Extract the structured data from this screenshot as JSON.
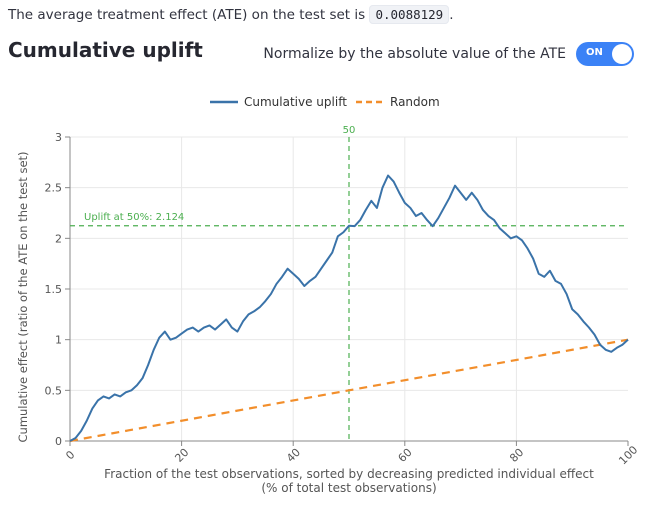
{
  "ate": {
    "prefix": "The average treatment effect (ATE) on the test set is",
    "value": "0.0088129",
    "suffix": "."
  },
  "section": {
    "title": "Cumulative uplift"
  },
  "toggle": {
    "label": "Normalize by the absolute value of the ATE",
    "state": "ON"
  },
  "colors": {
    "uplift": "#3a73a9",
    "random": "#f28e2b",
    "marker": "#4caf50",
    "toggle": "#3b82f6"
  },
  "chart_data": {
    "type": "line",
    "xlabel": "Fraction of the test observations, sorted by decreasing predicted individual effect",
    "xlabel2": "(% of total test observations)",
    "ylabel": "Cumulative effect (ratio of the ATE on the test set)",
    "xlim": [
      0,
      100
    ],
    "ylim": [
      0,
      3
    ],
    "x_ticks": [
      0,
      20,
      40,
      60,
      80,
      100
    ],
    "y_ticks": [
      0,
      0.5,
      1,
      1.5,
      2,
      2.5,
      3
    ],
    "y_tick_labels": [
      "0",
      "0.5",
      "1",
      "1.5",
      "2",
      "2.5",
      "3"
    ],
    "legend_position": "top-center",
    "vline": {
      "x": 50,
      "label": "50"
    },
    "hline": {
      "y": 2.124,
      "label": "Uplift at 50%: 2.124"
    },
    "series": [
      {
        "name": "Cumulative uplift",
        "style": "solid",
        "points": [
          [
            0,
            0
          ],
          [
            1,
            0.03
          ],
          [
            2,
            0.1
          ],
          [
            3,
            0.2
          ],
          [
            4,
            0.32
          ],
          [
            5,
            0.4
          ],
          [
            6,
            0.44
          ],
          [
            7,
            0.42
          ],
          [
            8,
            0.46
          ],
          [
            9,
            0.44
          ],
          [
            10,
            0.48
          ],
          [
            11,
            0.5
          ],
          [
            12,
            0.55
          ],
          [
            13,
            0.62
          ],
          [
            14,
            0.75
          ],
          [
            15,
            0.9
          ],
          [
            16,
            1.02
          ],
          [
            17,
            1.08
          ],
          [
            18,
            1.0
          ],
          [
            19,
            1.02
          ],
          [
            20,
            1.06
          ],
          [
            21,
            1.1
          ],
          [
            22,
            1.12
          ],
          [
            23,
            1.08
          ],
          [
            24,
            1.12
          ],
          [
            25,
            1.14
          ],
          [
            26,
            1.1
          ],
          [
            27,
            1.15
          ],
          [
            28,
            1.2
          ],
          [
            29,
            1.12
          ],
          [
            30,
            1.08
          ],
          [
            31,
            1.18
          ],
          [
            32,
            1.25
          ],
          [
            33,
            1.28
          ],
          [
            34,
            1.32
          ],
          [
            35,
            1.38
          ],
          [
            36,
            1.45
          ],
          [
            37,
            1.55
          ],
          [
            38,
            1.62
          ],
          [
            39,
            1.7
          ],
          [
            40,
            1.65
          ],
          [
            41,
            1.6
          ],
          [
            42,
            1.53
          ],
          [
            43,
            1.58
          ],
          [
            44,
            1.62
          ],
          [
            45,
            1.7
          ],
          [
            46,
            1.78
          ],
          [
            47,
            1.86
          ],
          [
            48,
            2.02
          ],
          [
            49,
            2.06
          ],
          [
            50,
            2.124
          ],
          [
            51,
            2.12
          ],
          [
            52,
            2.18
          ],
          [
            53,
            2.28
          ],
          [
            54,
            2.37
          ],
          [
            55,
            2.3
          ],
          [
            56,
            2.5
          ],
          [
            57,
            2.62
          ],
          [
            58,
            2.56
          ],
          [
            59,
            2.45
          ],
          [
            60,
            2.35
          ],
          [
            61,
            2.3
          ],
          [
            62,
            2.22
          ],
          [
            63,
            2.25
          ],
          [
            64,
            2.18
          ],
          [
            65,
            2.12
          ],
          [
            66,
            2.2
          ],
          [
            67,
            2.3
          ],
          [
            68,
            2.4
          ],
          [
            69,
            2.52
          ],
          [
            70,
            2.45
          ],
          [
            71,
            2.38
          ],
          [
            72,
            2.45
          ],
          [
            73,
            2.38
          ],
          [
            74,
            2.28
          ],
          [
            75,
            2.22
          ],
          [
            76,
            2.18
          ],
          [
            77,
            2.1
          ],
          [
            78,
            2.05
          ],
          [
            79,
            2.0
          ],
          [
            80,
            2.02
          ],
          [
            81,
            1.98
          ],
          [
            82,
            1.9
          ],
          [
            83,
            1.8
          ],
          [
            84,
            1.65
          ],
          [
            85,
            1.62
          ],
          [
            86,
            1.68
          ],
          [
            87,
            1.58
          ],
          [
            88,
            1.55
          ],
          [
            89,
            1.45
          ],
          [
            90,
            1.3
          ],
          [
            91,
            1.25
          ],
          [
            92,
            1.18
          ],
          [
            93,
            1.12
          ],
          [
            94,
            1.05
          ],
          [
            95,
            0.95
          ],
          [
            96,
            0.9
          ],
          [
            97,
            0.88
          ],
          [
            98,
            0.92
          ],
          [
            99,
            0.95
          ],
          [
            100,
            1.0
          ]
        ]
      },
      {
        "name": "Random",
        "style": "dashed",
        "points": [
          [
            0,
            0
          ],
          [
            100,
            1.0
          ]
        ]
      }
    ]
  }
}
